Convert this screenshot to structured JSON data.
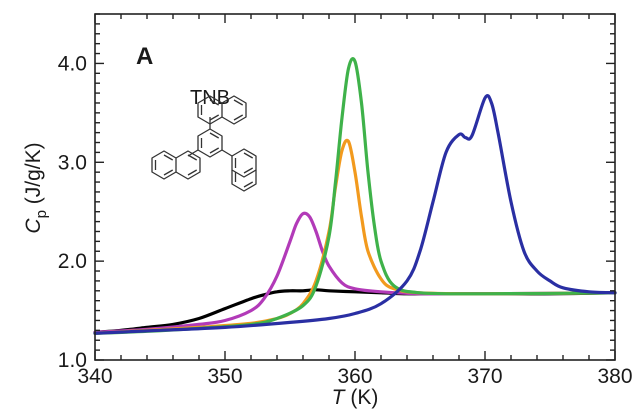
{
  "chart_data": {
    "type": "line",
    "panel_label": "A",
    "inset_label": "TNB",
    "xlabel_symbol": "T",
    "xlabel_unit": " (K)",
    "ylabel_symbol": "C",
    "ylabel_subscript": "p",
    "ylabel_unit": " (J/g/K)",
    "xlim": [
      340,
      380
    ],
    "ylim": [
      1.0,
      4.5
    ],
    "xticks": [
      340,
      350,
      360,
      370,
      380
    ],
    "xtick_labels": [
      "340",
      "350",
      "360",
      "370",
      "380"
    ],
    "yticks": [
      1.0,
      2.0,
      3.0,
      4.0
    ],
    "ytick_labels": [
      "1.0",
      "2.0",
      "3.0",
      "4.0"
    ],
    "grid": false,
    "series": [
      {
        "color": "#000000",
        "x": [
          340,
          342,
          344,
          346,
          348,
          350,
          352,
          353,
          354,
          355,
          356,
          357,
          358,
          360,
          362,
          364,
          366,
          370,
          375,
          380
        ],
        "y": [
          1.28,
          1.3,
          1.33,
          1.36,
          1.42,
          1.52,
          1.62,
          1.66,
          1.69,
          1.7,
          1.7,
          1.71,
          1.7,
          1.69,
          1.68,
          1.67,
          1.67,
          1.67,
          1.67,
          1.68
        ]
      },
      {
        "color": "#b23ab8",
        "x": [
          340,
          344,
          348,
          350,
          352,
          353,
          354,
          355,
          355.5,
          356,
          356.5,
          357,
          357.5,
          358,
          359,
          360,
          362,
          365,
          370,
          380
        ],
        "y": [
          1.28,
          1.31,
          1.36,
          1.4,
          1.5,
          1.62,
          1.85,
          2.2,
          2.38,
          2.48,
          2.45,
          2.3,
          2.1,
          1.95,
          1.78,
          1.72,
          1.69,
          1.67,
          1.67,
          1.68
        ]
      },
      {
        "color": "#f29a1e",
        "x": [
          340,
          344,
          348,
          352,
          354,
          355,
          356,
          357,
          358,
          358.5,
          359,
          359.5,
          360,
          360.5,
          361,
          362,
          363,
          365,
          370,
          380
        ],
        "y": [
          1.27,
          1.3,
          1.33,
          1.37,
          1.42,
          1.47,
          1.57,
          1.8,
          2.3,
          2.75,
          3.12,
          3.21,
          2.9,
          2.45,
          2.1,
          1.82,
          1.72,
          1.68,
          1.67,
          1.68
        ]
      },
      {
        "color": "#3fb24a",
        "x": [
          340,
          344,
          348,
          352,
          354,
          356,
          357,
          358,
          358.5,
          359,
          359.5,
          360,
          360.5,
          361,
          361.5,
          362,
          363,
          365,
          370,
          380
        ],
        "y": [
          1.27,
          1.29,
          1.32,
          1.36,
          1.42,
          1.55,
          1.75,
          2.25,
          2.8,
          3.45,
          3.95,
          4.02,
          3.6,
          2.9,
          2.35,
          2.0,
          1.75,
          1.68,
          1.67,
          1.68
        ]
      },
      {
        "color": "#2a2fa3",
        "x": [
          340,
          345,
          350,
          355,
          358,
          360,
          362,
          364,
          365,
          366,
          367,
          368,
          368.5,
          369,
          370,
          370.5,
          371,
          372,
          373,
          374,
          375,
          376,
          378,
          380
        ],
        "y": [
          1.27,
          1.3,
          1.33,
          1.38,
          1.42,
          1.47,
          1.57,
          1.8,
          2.1,
          2.6,
          3.1,
          3.28,
          3.25,
          3.27,
          3.65,
          3.6,
          3.3,
          2.6,
          2.1,
          1.9,
          1.8,
          1.73,
          1.69,
          1.68
        ]
      }
    ]
  }
}
